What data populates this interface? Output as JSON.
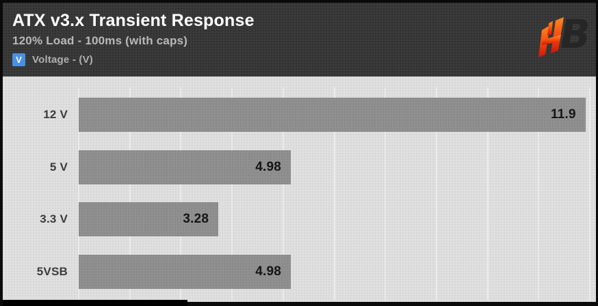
{
  "header": {
    "title": "ATX v3.x Transient Response",
    "subtitle": "120% Load - 100ms (with caps)",
    "legend": {
      "badge": "V",
      "label": "Voltage - (V)"
    },
    "logo_letters": {
      "h": "H",
      "b": "B"
    }
  },
  "colors": {
    "frame": "#0a0a0a",
    "header_bg": "#3b3b3b",
    "chart_bg": "#e0e0e0",
    "title": "#ffffff",
    "subtitle": "#b9b9b9",
    "legend_badge": "#4a90e2",
    "legend_text": "#b0b0b0",
    "category_label": "#3c3c3c",
    "value_label": "#151515",
    "bar": "#909090",
    "gridline": "#ebebeb",
    "logo_orange_top": "#ff8a1e",
    "logo_orange_bottom": "#d01407",
    "logo_dark": "#262626"
  },
  "chart_data": {
    "type": "bar",
    "orientation": "horizontal",
    "title": "ATX v3.x Transient Response",
    "subtitle": "120% Load - 100ms (with caps)",
    "legend_entries": [
      "Voltage - (V)"
    ],
    "legend_position": "top-left",
    "unit": "V",
    "categories": [
      "12 V",
      "5 V",
      "3.3 V",
      "5VSB"
    ],
    "values": [
      11.9,
      4.98,
      3.28,
      4.98
    ],
    "value_labels": [
      "11.9",
      "4.98",
      "3.28",
      "4.98"
    ],
    "xlim": [
      0,
      12
    ],
    "gridline_divisions": 10,
    "grid": true,
    "value_labels_inside_bar": true
  }
}
